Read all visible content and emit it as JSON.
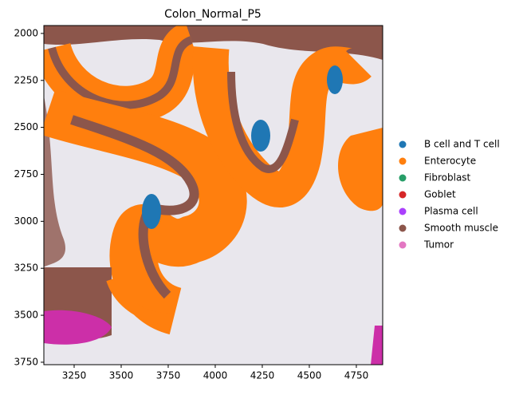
{
  "chart_data": {
    "type": "scatter",
    "title": "Colon_Normal_P5",
    "series": [
      {
        "name": "B cell and T cell",
        "color": "#1f77b4"
      },
      {
        "name": "Enterocyte",
        "color": "#ff7f0e"
      },
      {
        "name": "Fibroblast",
        "color": "#279e68"
      },
      {
        "name": "Goblet",
        "color": "#d62728"
      },
      {
        "name": "Plasma cell",
        "color": "#aa40fc"
      },
      {
        "name": "Smooth muscle",
        "color": "#8c564b"
      },
      {
        "name": "Tumor",
        "color": "#e377c2"
      }
    ],
    "xlim": [
      3089,
      4890
    ],
    "xticks": [
      3250,
      3500,
      3750,
      4000,
      4250,
      4500,
      4750
    ],
    "ylim": [
      3763,
      1958
    ],
    "yticks": [
      2000,
      2250,
      2500,
      2750,
      3000,
      3250,
      3500,
      3750
    ],
    "legend": "right"
  }
}
